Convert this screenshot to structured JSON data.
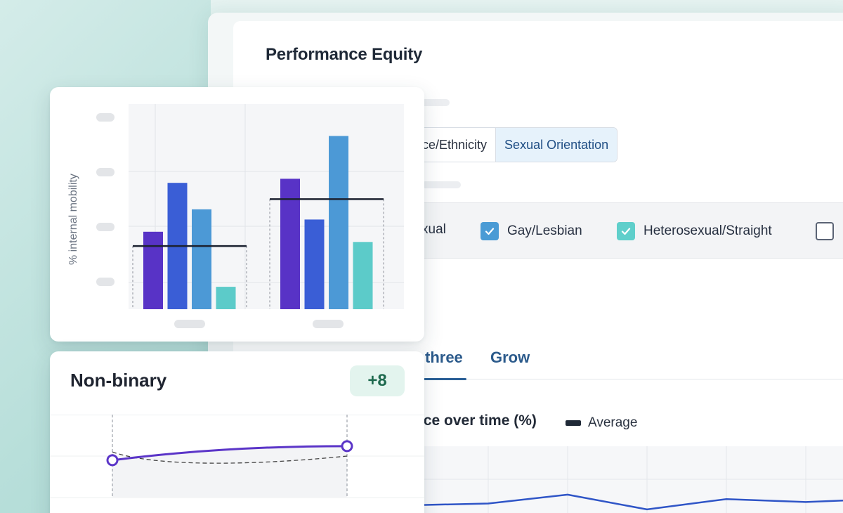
{
  "main": {
    "title": "Performance Equity",
    "segments": {
      "partial": "ce/Ethnicity",
      "active": "Sexual Orientation"
    },
    "filters": [
      {
        "label": "xual",
        "checked": false,
        "color": ""
      },
      {
        "label": "Gay/Lesbian",
        "checked": true,
        "color": "#4a9bd5"
      },
      {
        "label": "Heterosexual/Straight",
        "checked": true,
        "color": "#5fcfcb"
      },
      {
        "label": "",
        "checked": false,
        "color": ""
      }
    ],
    "tabs": {
      "active": "three",
      "next": "Grow"
    },
    "chart_title": "nce over time (%)",
    "legend_label": "Average"
  },
  "bar_card": {
    "ylabel": "% internal mobility"
  },
  "nb_card": {
    "title": "Non-binary",
    "badge": "+8"
  },
  "chart_data": [
    {
      "type": "bar",
      "ylabel": "% internal mobility",
      "groups": [
        {
          "values": [
            38,
            62,
            49,
            11
          ],
          "average": 31
        },
        {
          "values": [
            64,
            44,
            85,
            33
          ],
          "average": 54
        }
      ],
      "colors": [
        "#5833c6",
        "#3a5ed6",
        "#4c99d6",
        "#5ccbc9"
      ],
      "ylim": [
        0,
        100
      ],
      "grid": true
    },
    {
      "type": "line",
      "series": [
        {
          "values": [
            45,
            62
          ],
          "color": "#5b35c8"
        },
        {
          "values": [
            55,
            42,
            50
          ],
          "color": "#444"
        }
      ],
      "ylim": [
        0,
        100
      ]
    },
    {
      "type": "line",
      "series": [
        {
          "values": [
            8,
            10,
            22,
            2,
            16,
            12,
            14
          ],
          "color": "#2f55c7"
        }
      ],
      "ylim": [
        0,
        100
      ],
      "grid": true
    }
  ]
}
